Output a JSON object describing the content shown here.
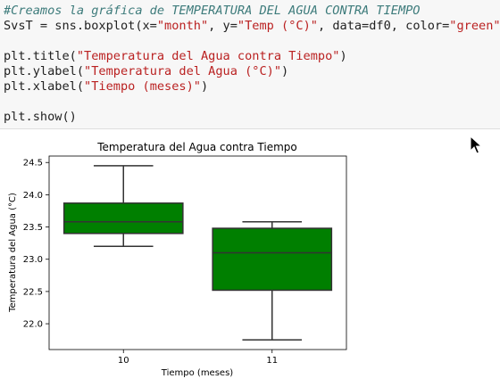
{
  "code": {
    "lines": [
      {
        "segs": [
          {
            "t": "#Creamos la gráfica de TEMPERATURA DEL AGUA CONTRA TIEMPO",
            "c": "cmt"
          }
        ]
      },
      {
        "segs": [
          {
            "t": "SvsT = sns.boxplot(x=",
            "c": ""
          },
          {
            "t": "\"month\"",
            "c": "str"
          },
          {
            "t": ", y=",
            "c": ""
          },
          {
            "t": "\"Temp (°C)\"",
            "c": "str"
          },
          {
            "t": ", data=df0, color=",
            "c": ""
          },
          {
            "t": "\"green\"",
            "c": "str"
          },
          {
            "t": ")",
            "c": ""
          }
        ]
      },
      {
        "segs": []
      },
      {
        "segs": [
          {
            "t": "plt.title(",
            "c": ""
          },
          {
            "t": "\"Temperatura del Agua contra Tiempo\"",
            "c": "str"
          },
          {
            "t": ")",
            "c": ""
          }
        ]
      },
      {
        "segs": [
          {
            "t": "plt.ylabel(",
            "c": ""
          },
          {
            "t": "\"Temperatura del Agua (°C)\"",
            "c": "str"
          },
          {
            "t": ")",
            "c": ""
          }
        ]
      },
      {
        "segs": [
          {
            "t": "plt.xlabel(",
            "c": ""
          },
          {
            "t": "\"Tiempo (meses)\"",
            "c": "str"
          },
          {
            "t": ")",
            "c": ""
          }
        ]
      },
      {
        "segs": []
      },
      {
        "segs": [
          {
            "t": "plt.show()",
            "c": ""
          }
        ]
      }
    ]
  },
  "chart_data": {
    "type": "box",
    "title": "Temperatura del Agua contra Tiempo",
    "xlabel": "Tiempo (meses)",
    "ylabel": "Temperatura del Agua (°C)",
    "categories": [
      "10",
      "11"
    ],
    "boxes": [
      {
        "category": "10",
        "whisker_low": 23.2,
        "q1": 23.4,
        "median": 23.58,
        "q3": 23.87,
        "whisker_high": 24.45
      },
      {
        "category": "11",
        "whisker_low": 21.75,
        "q1": 22.52,
        "median": 23.1,
        "q3": 23.48,
        "whisker_high": 23.58
      }
    ],
    "ylim": [
      21.6,
      24.6
    ],
    "yticks": [
      22.0,
      22.5,
      23.0,
      23.5,
      24.0,
      24.5
    ],
    "ytick_labels": [
      "22.0",
      "22.5",
      "23.0",
      "23.5",
      "24.0",
      "24.5"
    ],
    "grid": false,
    "box_color": "#007f00",
    "line_color": "#333333"
  }
}
